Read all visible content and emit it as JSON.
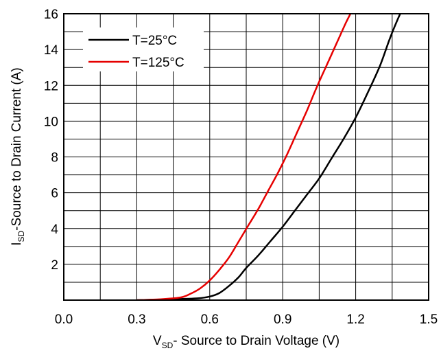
{
  "chart_data": {
    "type": "line",
    "xlabel": {
      "main": "V",
      "sub": "SD",
      "rest": "- Source to Drain Voltage (V)"
    },
    "ylabel": {
      "main": "I",
      "sub": "SD",
      "rest": "-Source to Drain Current (A)"
    },
    "xlim": [
      0,
      1.5
    ],
    "ylim": [
      0,
      16
    ],
    "xticks": [
      0.0,
      0.3,
      0.6,
      0.9,
      1.2,
      1.5
    ],
    "xtick_labels": [
      "0.0",
      "0.3",
      "0.6",
      "0.9",
      "1.2",
      "1.5"
    ],
    "yticks": [
      2,
      4,
      6,
      8,
      10,
      12,
      14,
      16
    ],
    "ytick_labels": [
      "2",
      "4",
      "6",
      "8",
      "10",
      "12",
      "14",
      "16"
    ],
    "xgrid_step": 0.15,
    "ygrid_step": 1,
    "grid": true,
    "legend_position": "top-left",
    "series": [
      {
        "name": "T=25°C",
        "color": "#000000",
        "x": [
          0.3,
          0.45,
          0.55,
          0.6,
          0.64,
          0.68,
          0.72,
          0.75,
          0.8,
          0.85,
          0.9,
          0.95,
          1.0,
          1.05,
          1.1,
          1.15,
          1.2,
          1.25,
          1.3,
          1.34,
          1.37,
          1.39
        ],
        "y": [
          0.0,
          0.05,
          0.1,
          0.2,
          0.4,
          0.8,
          1.3,
          1.8,
          2.5,
          3.3,
          4.1,
          5.0,
          5.9,
          6.8,
          7.9,
          9.0,
          10.2,
          11.6,
          13.1,
          14.6,
          15.6,
          16.2
        ]
      },
      {
        "name": "T=125°C",
        "color": "#e60000",
        "x": [
          0.3,
          0.4,
          0.48,
          0.52,
          0.56,
          0.6,
          0.64,
          0.68,
          0.72,
          0.76,
          0.8,
          0.84,
          0.88,
          0.92,
          0.96,
          1.0,
          1.04,
          1.08,
          1.12,
          1.16,
          1.19
        ],
        "y": [
          0.0,
          0.05,
          0.15,
          0.35,
          0.65,
          1.1,
          1.7,
          2.4,
          3.3,
          4.2,
          5.1,
          6.1,
          7.1,
          8.2,
          9.4,
          10.6,
          11.9,
          13.1,
          14.3,
          15.5,
          16.3
        ]
      }
    ]
  }
}
